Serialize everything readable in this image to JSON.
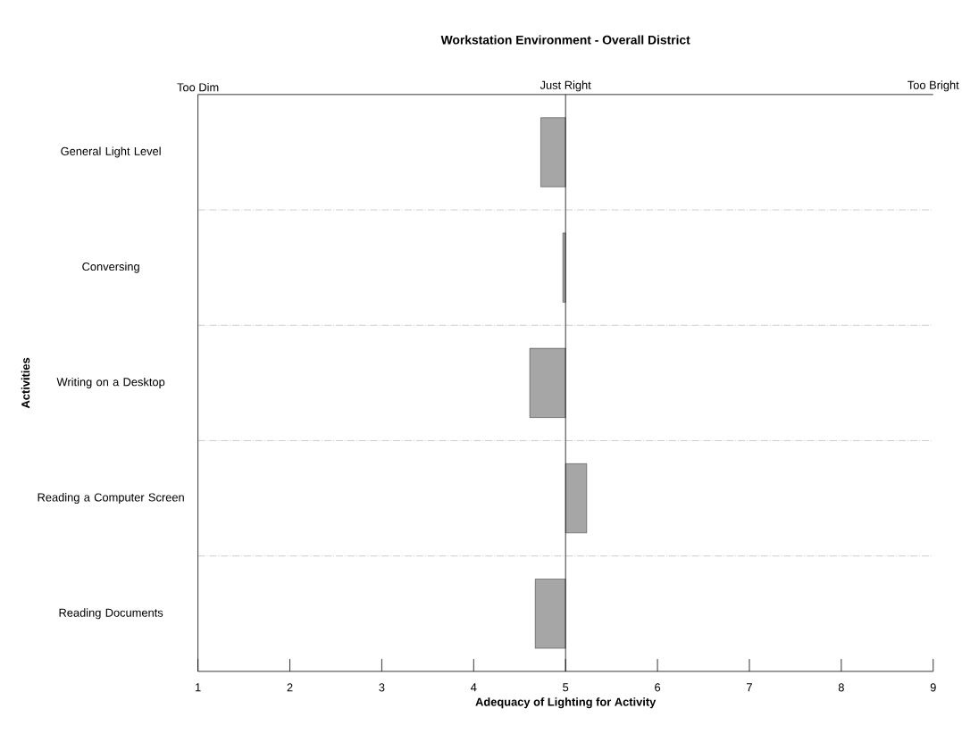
{
  "chart_data": {
    "type": "bar",
    "orientation": "horizontal",
    "title": "Workstation Environment - Overall District",
    "xlabel": "Adequacy of Lighting for Activity",
    "ylabel": "Activities",
    "categories": [
      "General Light Level",
      "Conversing",
      "Writing on a Desktop",
      "Reading a Computer Screen",
      "Reading Documents"
    ],
    "base": [
      5,
      5,
      5,
      5,
      5
    ],
    "values": [
      -0.27,
      -0.03,
      -0.39,
      0.23,
      -0.33
    ],
    "color": "#a6a6a6",
    "xlim": [
      1,
      9
    ],
    "xticks": [
      1,
      2,
      3,
      4,
      5,
      6,
      7,
      8,
      9
    ],
    "annotations": [
      "Too Dim",
      "Just Right",
      "Too Bright"
    ],
    "ref_lines": [
      {
        "axis": "x",
        "value": 5
      }
    ],
    "grid": "y"
  }
}
